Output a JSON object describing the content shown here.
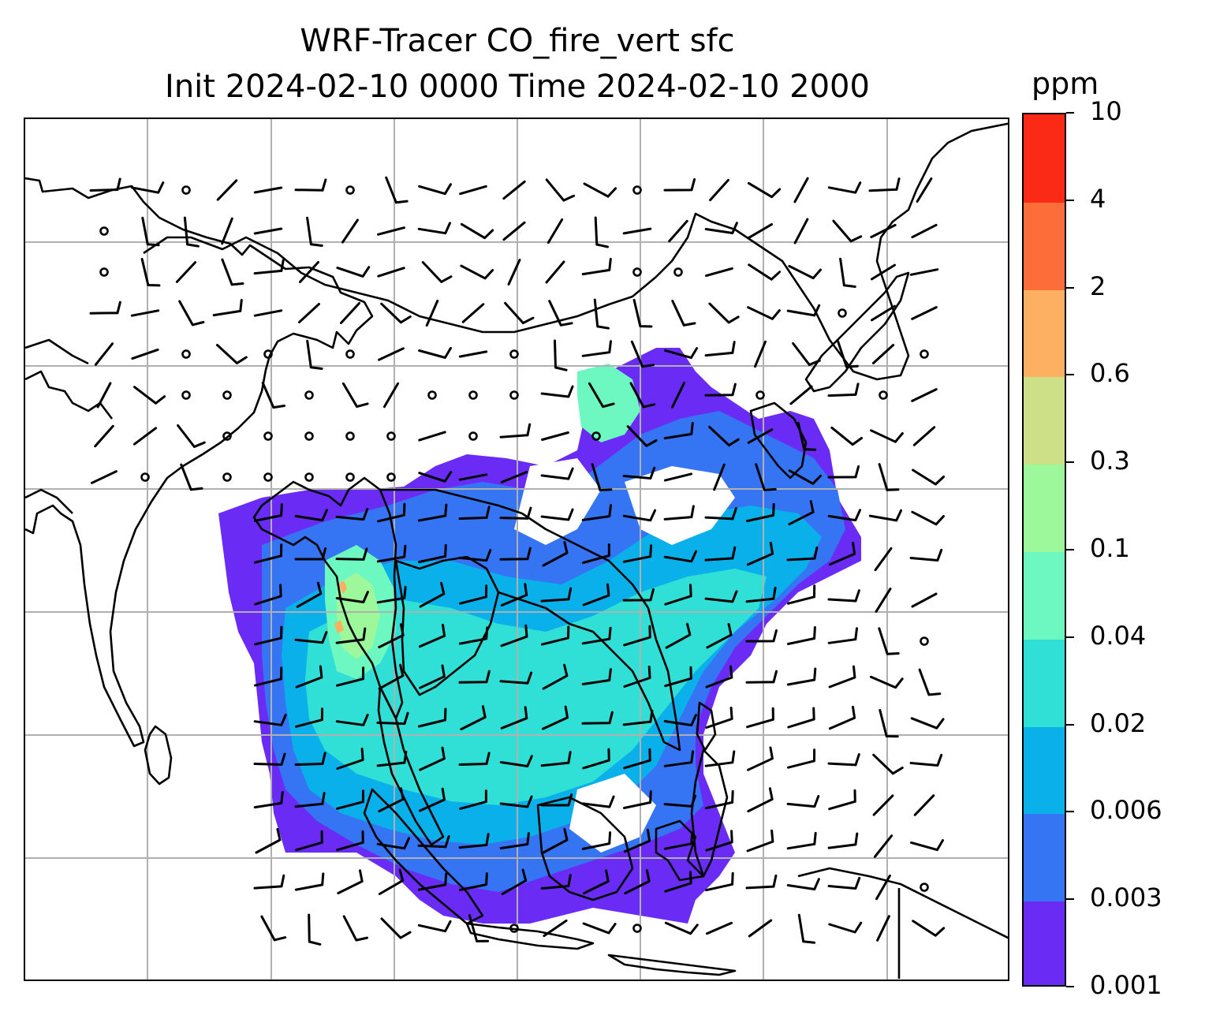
{
  "title": {
    "line1": "WRF-Tracer CO_fire_vert sfc",
    "line2": "Init 2024-02-10 0000 Time 2024-02-10 2000"
  },
  "colorbar": {
    "unit": "ppm",
    "levels": [
      "0.001",
      "0.003",
      "0.006",
      "0.02",
      "0.04",
      "0.1",
      "0.3",
      "0.6",
      "2",
      "4",
      "10"
    ],
    "colors": [
      "#6a2cf5",
      "#3574f3",
      "#0ab0ea",
      "#30dfd5",
      "#6cf8c0",
      "#9cf89a",
      "#cde087",
      "#fdaf62",
      "#fd6d3a",
      "#fa2a16"
    ]
  },
  "map": {
    "gridlines": true,
    "gridline_color": "#b0b0b0",
    "coastline_color": "#000000",
    "wind_barbs": true,
    "contour_fill": true
  }
}
